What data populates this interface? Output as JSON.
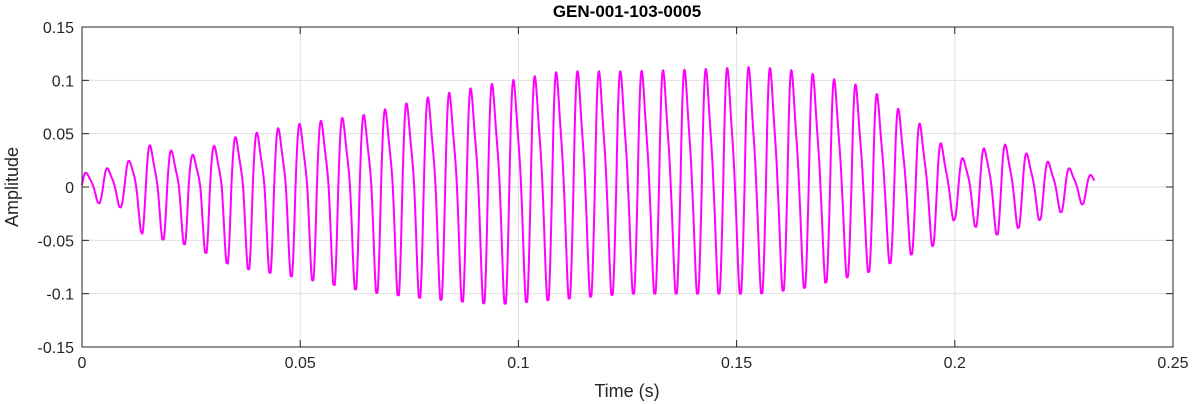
{
  "chart_data": {
    "type": "line",
    "title": "GEN-001-103-0005",
    "xlabel": "Time (s)",
    "ylabel": "Amplitude",
    "xlim": [
      0,
      0.25
    ],
    "ylim": [
      -0.15,
      0.15
    ],
    "xticks": [
      "0",
      "0.05",
      "0.1",
      "0.15",
      "0.2",
      "0.25"
    ],
    "yticks": [
      "0.15",
      "0.1",
      "0.05",
      "0",
      "-0.05",
      "-0.1",
      "-0.15"
    ],
    "grid": true,
    "series": [
      {
        "color": "#ff00ff",
        "x_start": 0,
        "x_end": 0.232,
        "cycle_period": 0.0049,
        "envelope": [
          {
            "t": 0.0,
            "max": 0.015,
            "min": -0.012
          },
          {
            "t": 0.01,
            "max": 0.025,
            "min": -0.02
          },
          {
            "t": 0.014,
            "max": 0.048,
            "min": -0.045
          },
          {
            "t": 0.025,
            "max": 0.035,
            "min": -0.055
          },
          {
            "t": 0.035,
            "max": 0.055,
            "min": -0.075
          },
          {
            "t": 0.05,
            "max": 0.07,
            "min": -0.085
          },
          {
            "t": 0.065,
            "max": 0.08,
            "min": -0.098
          },
          {
            "t": 0.08,
            "max": 0.1,
            "min": -0.105
          },
          {
            "t": 0.095,
            "max": 0.115,
            "min": -0.11
          },
          {
            "t": 0.11,
            "max": 0.128,
            "min": -0.105
          },
          {
            "t": 0.125,
            "max": 0.128,
            "min": -0.1
          },
          {
            "t": 0.14,
            "max": 0.13,
            "min": -0.1
          },
          {
            "t": 0.155,
            "max": 0.133,
            "min": -0.1
          },
          {
            "t": 0.165,
            "max": 0.128,
            "min": -0.095
          },
          {
            "t": 0.18,
            "max": 0.11,
            "min": -0.08
          },
          {
            "t": 0.195,
            "max": 0.06,
            "min": -0.055
          },
          {
            "t": 0.2,
            "max": 0.028,
            "min": -0.03
          },
          {
            "t": 0.21,
            "max": 0.05,
            "min": -0.045
          },
          {
            "t": 0.22,
            "max": 0.03,
            "min": -0.03
          },
          {
            "t": 0.232,
            "max": 0.012,
            "min": -0.012
          }
        ]
      }
    ]
  }
}
